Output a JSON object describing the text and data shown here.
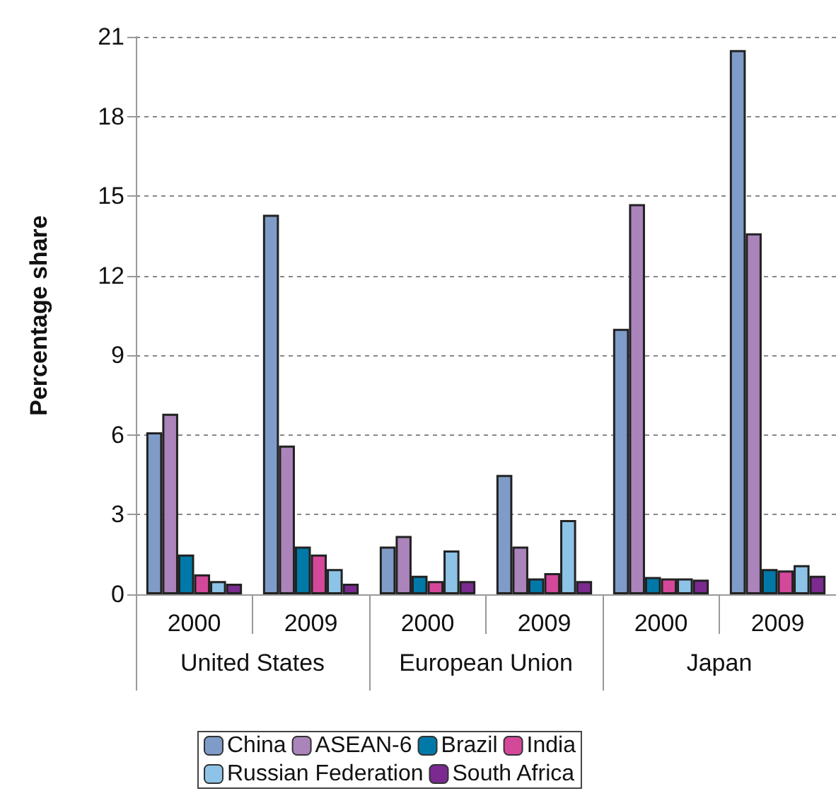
{
  "chart_data": {
    "type": "bar",
    "ylabel": "Percentage share",
    "categories": [
      "2000",
      "2009",
      "2000",
      "2009",
      "2000",
      "2009"
    ],
    "annotations": [
      "United States",
      "European Union",
      "Japan"
    ],
    "series": [
      {
        "name": "China",
        "color": "#7f9cc8",
        "values": [
          6.1,
          14.3,
          1.8,
          4.5,
          10.0,
          20.5
        ]
      },
      {
        "name": "ASEAN-6",
        "color": "#ab84bb",
        "values": [
          6.8,
          5.6,
          2.2,
          1.8,
          14.7,
          13.6
        ]
      },
      {
        "name": "Brazil",
        "color": "#0079a8",
        "values": [
          1.5,
          1.8,
          0.7,
          0.6,
          0.65,
          0.95
        ]
      },
      {
        "name": "India",
        "color": "#d4489a",
        "values": [
          0.75,
          1.5,
          0.5,
          0.8,
          0.6,
          0.9
        ]
      },
      {
        "name": "Russian Federation",
        "color": "#8dc3e6",
        "values": [
          0.5,
          0.95,
          1.65,
          2.8,
          0.6,
          1.1
        ]
      },
      {
        "name": "South Africa",
        "color": "#7b2a90",
        "values": [
          0.4,
          0.4,
          0.5,
          0.5,
          0.55,
          0.7
        ]
      }
    ],
    "ylim": [
      0,
      21
    ],
    "yticks": [
      0,
      3,
      6,
      9,
      12,
      15,
      18,
      21
    ],
    "grid": "y",
    "legend": "bottom"
  }
}
